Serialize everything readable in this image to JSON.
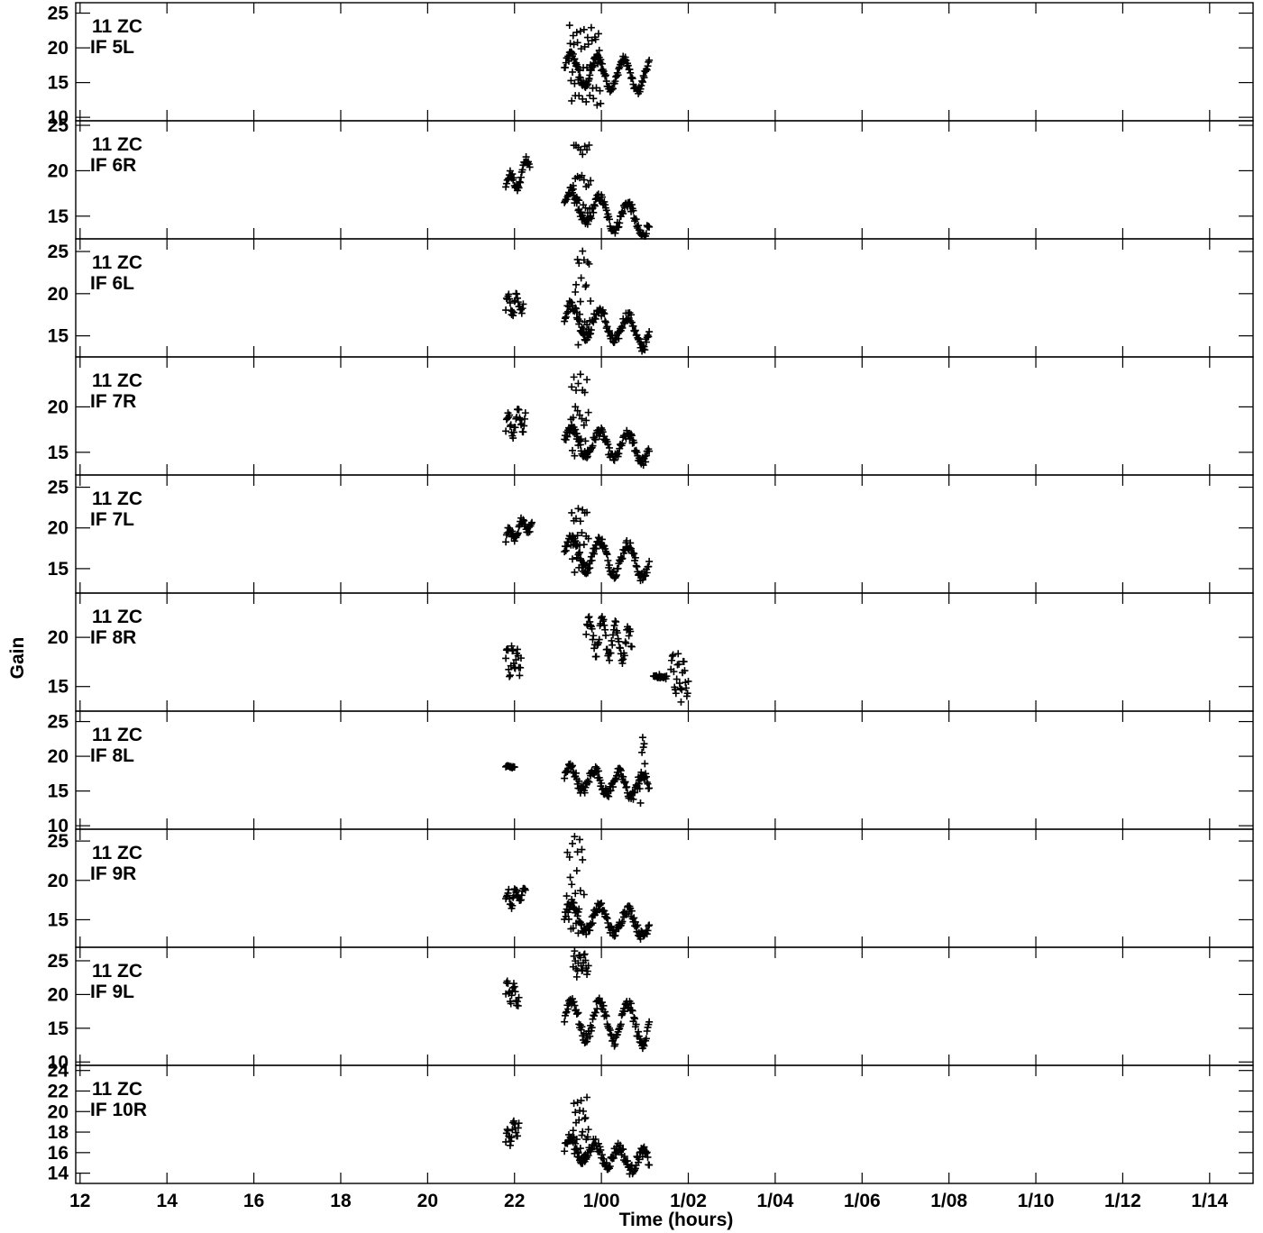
{
  "chart_data": {
    "type": "scatter",
    "marker": "plus",
    "color": "#000000",
    "xlabel": "Time (hours)",
    "ylabel": "Gain",
    "x_unit": "hours",
    "xlim": [
      11.9,
      39.0
    ],
    "x_ticks": [
      {
        "v": 12,
        "label": "12"
      },
      {
        "v": 14,
        "label": "14"
      },
      {
        "v": 16,
        "label": "16"
      },
      {
        "v": 18,
        "label": "18"
      },
      {
        "v": 20,
        "label": "20"
      },
      {
        "v": 22,
        "label": "22"
      },
      {
        "v": 24,
        "label": "1/00"
      },
      {
        "v": 26,
        "label": "1/02"
      },
      {
        "v": 28,
        "label": "1/04"
      },
      {
        "v": 30,
        "label": "1/06"
      },
      {
        "v": 32,
        "label": "1/08"
      },
      {
        "v": 34,
        "label": "1/10"
      },
      {
        "v": 36,
        "label": "1/12"
      },
      {
        "v": 38,
        "label": "1/14"
      }
    ],
    "panels": [
      {
        "source": "11 ZC",
        "name": "IF 5L",
        "ylim": [
          9.5,
          26.5
        ],
        "yticks": [
          10,
          15,
          20,
          25
        ],
        "groups": [
          {
            "t0": 23.15,
            "t1": 25.1,
            "base": 17.0,
            "amp": 2.2,
            "freq": 3.2,
            "trend": -1.2,
            "noise": 0.5
          },
          {
            "t0": 23.25,
            "t1": 24.0,
            "base": 17.5,
            "amp": 5.0,
            "freq": 9.0,
            "trend": 0.0,
            "noise": 1.0
          }
        ]
      },
      {
        "source": "11 ZC",
        "name": "IF 6R",
        "ylim": [
          12.5,
          25.5
        ],
        "yticks": [
          15,
          20,
          25
        ],
        "groups": [
          {
            "t0": 21.8,
            "t1": 22.35,
            "base": 18.0,
            "amp": 1.2,
            "freq": 1.5,
            "trend": 2.5,
            "noise": 0.4
          },
          {
            "t0": 23.15,
            "t1": 25.1,
            "base": 16.3,
            "amp": 1.6,
            "freq": 3.0,
            "trend": -2.0,
            "noise": 0.5
          },
          {
            "t0": 23.35,
            "t1": 23.75,
            "base": 19.0,
            "amp": 3.5,
            "freq": 8.0,
            "trend": 0.0,
            "noise": 0.8
          }
        ]
      },
      {
        "source": "11 ZC",
        "name": "IF 6L",
        "ylim": [
          12.5,
          26.5
        ],
        "yticks": [
          15,
          20,
          25
        ],
        "groups": [
          {
            "t0": 21.8,
            "t1": 22.2,
            "base": 18.5,
            "amp": 1.0,
            "freq": 2.0,
            "trend": 0.5,
            "noise": 0.5
          },
          {
            "t0": 23.15,
            "t1": 25.1,
            "base": 17.2,
            "amp": 1.7,
            "freq": 3.0,
            "trend": -2.0,
            "noise": 0.6
          },
          {
            "t0": 23.4,
            "t1": 23.75,
            "base": 20.0,
            "amp": 5.0,
            "freq": 9.0,
            "trend": 0.0,
            "noise": 1.2
          }
        ]
      },
      {
        "source": "11 ZC",
        "name": "IF 7R",
        "ylim": [
          12.5,
          25.5
        ],
        "yticks": [
          15,
          20
        ],
        "groups": [
          {
            "t0": 21.8,
            "t1": 22.25,
            "base": 17.5,
            "amp": 1.3,
            "freq": 2.0,
            "trend": 1.5,
            "noise": 0.5
          },
          {
            "t0": 23.15,
            "t1": 25.1,
            "base": 16.3,
            "amp": 1.4,
            "freq": 3.0,
            "trend": -1.0,
            "noise": 0.5
          },
          {
            "t0": 23.3,
            "t1": 23.7,
            "base": 19.0,
            "amp": 4.0,
            "freq": 8.0,
            "trend": 0.0,
            "noise": 1.2
          }
        ]
      },
      {
        "source": "11 ZC",
        "name": "IF 7L",
        "ylim": [
          12.0,
          26.5
        ],
        "yticks": [
          15,
          20,
          25
        ],
        "groups": [
          {
            "t0": 21.8,
            "t1": 22.4,
            "base": 18.5,
            "amp": 1.0,
            "freq": 2.0,
            "trend": 2.5,
            "noise": 0.5
          },
          {
            "t0": 23.15,
            "t1": 25.1,
            "base": 17.2,
            "amp": 1.9,
            "freq": 3.0,
            "trend": -1.5,
            "noise": 0.6
          },
          {
            "t0": 23.3,
            "t1": 23.7,
            "base": 18.5,
            "amp": 3.5,
            "freq": 8.0,
            "trend": 0.0,
            "noise": 1.0
          }
        ]
      },
      {
        "source": "11 ZC",
        "name": "IF 8R",
        "ylim": [
          12.5,
          24.5
        ],
        "yticks": [
          15,
          20
        ],
        "groups": [
          {
            "t0": 21.8,
            "t1": 22.15,
            "base": 17.5,
            "amp": 1.4,
            "freq": 3.0,
            "trend": 0.5,
            "noise": 0.6
          },
          {
            "t0": 23.65,
            "t1": 24.7,
            "base": 20.5,
            "amp": 1.6,
            "freq": 3.5,
            "trend": -1.5,
            "noise": 0.6
          },
          {
            "t0": 25.2,
            "t1": 25.5,
            "base": 16.0,
            "amp": 0.1,
            "freq": 1.0,
            "trend": 0.0,
            "noise": 0.2
          },
          {
            "t0": 25.6,
            "t1": 26.0,
            "base": 16.5,
            "amp": 1.8,
            "freq": 3.0,
            "trend": -1.0,
            "noise": 0.7
          }
        ]
      },
      {
        "source": "11 ZC",
        "name": "IF 8L",
        "ylim": [
          9.5,
          26.5
        ],
        "yticks": [
          10,
          15,
          20,
          25
        ],
        "groups": [
          {
            "t0": 21.8,
            "t1": 22.0,
            "base": 18.5,
            "amp": 0.1,
            "freq": 1.0,
            "trend": 0.0,
            "noise": 0.1
          },
          {
            "t0": 23.15,
            "t1": 25.1,
            "base": 17.0,
            "amp": 1.6,
            "freq": 3.5,
            "trend": -1.5,
            "noise": 0.7
          },
          {
            "t0": 24.85,
            "t1": 25.0,
            "base": 18.0,
            "amp": 4.0,
            "freq": 8.0,
            "trend": 0.0,
            "noise": 1.5
          }
        ]
      },
      {
        "source": "11 ZC",
        "name": "IF 9R",
        "ylim": [
          11.5,
          26.5
        ],
        "yticks": [
          15,
          20,
          25
        ],
        "groups": [
          {
            "t0": 21.8,
            "t1": 22.25,
            "base": 17.5,
            "amp": 1.0,
            "freq": 2.5,
            "trend": 1.0,
            "noise": 0.5
          },
          {
            "t0": 23.15,
            "t1": 25.1,
            "base": 15.5,
            "amp": 1.6,
            "freq": 3.0,
            "trend": -1.0,
            "noise": 0.6
          },
          {
            "t0": 23.2,
            "t1": 23.6,
            "base": 19.0,
            "amp": 5.5,
            "freq": 7.0,
            "trend": 0.0,
            "noise": 1.3
          }
        ]
      },
      {
        "source": "11 ZC",
        "name": "IF 9L",
        "ylim": [
          9.5,
          27.0
        ],
        "yticks": [
          10,
          15,
          20,
          25
        ],
        "groups": [
          {
            "t0": 21.8,
            "t1": 22.1,
            "base": 20.5,
            "amp": 1.2,
            "freq": 2.0,
            "trend": -1.0,
            "noise": 0.6
          },
          {
            "t0": 23.15,
            "t1": 25.1,
            "base": 16.5,
            "amp": 2.8,
            "freq": 3.0,
            "trend": -1.0,
            "noise": 0.8
          },
          {
            "t0": 23.35,
            "t1": 23.7,
            "base": 24.5,
            "amp": 1.5,
            "freq": 3.0,
            "trend": 0.0,
            "noise": 0.5
          }
        ]
      },
      {
        "source": "11 ZC",
        "name": "IF 10R",
        "ylim": [
          13.0,
          24.5
        ],
        "yticks": [
          14,
          16,
          18,
          20,
          22,
          24
        ],
        "groups": [
          {
            "t0": 21.8,
            "t1": 22.1,
            "base": 17.0,
            "amp": 1.0,
            "freq": 2.0,
            "trend": 2.0,
            "noise": 0.4
          },
          {
            "t0": 23.15,
            "t1": 25.1,
            "base": 16.5,
            "amp": 1.0,
            "freq": 3.5,
            "trend": -1.5,
            "noise": 0.5
          },
          {
            "t0": 23.35,
            "t1": 23.7,
            "base": 18.5,
            "amp": 2.5,
            "freq": 8.0,
            "trend": 0.0,
            "noise": 0.8
          }
        ]
      }
    ]
  }
}
